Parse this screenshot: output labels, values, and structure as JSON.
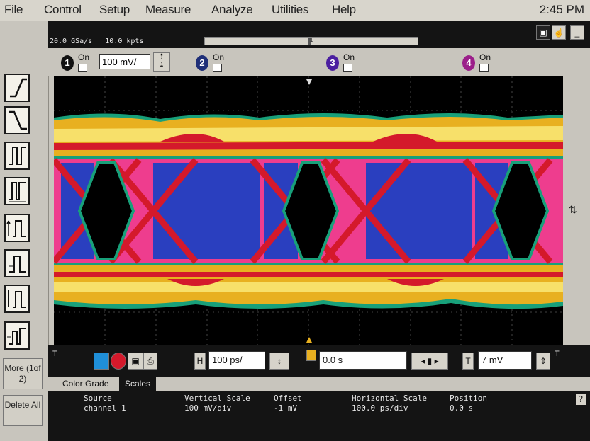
{
  "menu": [
    "File",
    "Control",
    "Setup",
    "Measure",
    "Analyze",
    "Utilities",
    "Help"
  ],
  "clock": "2:45 PM",
  "acquisition": {
    "sample_rate": "20.0 GSa/s",
    "memory": "10.0 kpts",
    "slider_marker": "1"
  },
  "window_buttons": {
    "minimize": "_"
  },
  "channels": [
    {
      "number": "1",
      "on_label": "On",
      "color": "#111111",
      "scale": "100 mV/"
    },
    {
      "number": "2",
      "on_label": "On",
      "color": "#1f2f78"
    },
    {
      "number": "3",
      "on_label": "On",
      "color": "#4b1fa0"
    },
    {
      "number": "4",
      "on_label": "On",
      "color": "#9b1f8a"
    }
  ],
  "side_buttons": {
    "more": "More (1of 2)",
    "delete_all": "Delete All"
  },
  "horizontal_controls": {
    "time_per_div": "100 ps/",
    "delay": "0.0 s",
    "trigger_level": "7 mV",
    "marker_left": "T",
    "marker_right": "T"
  },
  "tabs": [
    "Color Grade",
    "Scales"
  ],
  "active_tab": "Scales",
  "scales_table": {
    "source_header": "Source",
    "source_value": "channel 1",
    "vscale_header": "Vertical Scale",
    "vscale_value": "100 mV/div",
    "offset_header": "Offset",
    "offset_value": "-1 mV",
    "hscale_header": "Horizontal Scale",
    "hscale_value": "100.0 ps/div",
    "position_header": "Position",
    "position_value": "0.0 s"
  },
  "help_label": "?",
  "colors": {
    "band_outer": "#e8b020",
    "band_inner": "#f7e06a",
    "pink": "#ee3d8e",
    "blue": "#2a3fbf",
    "red": "#d4192b",
    "green": "#18a07a"
  }
}
